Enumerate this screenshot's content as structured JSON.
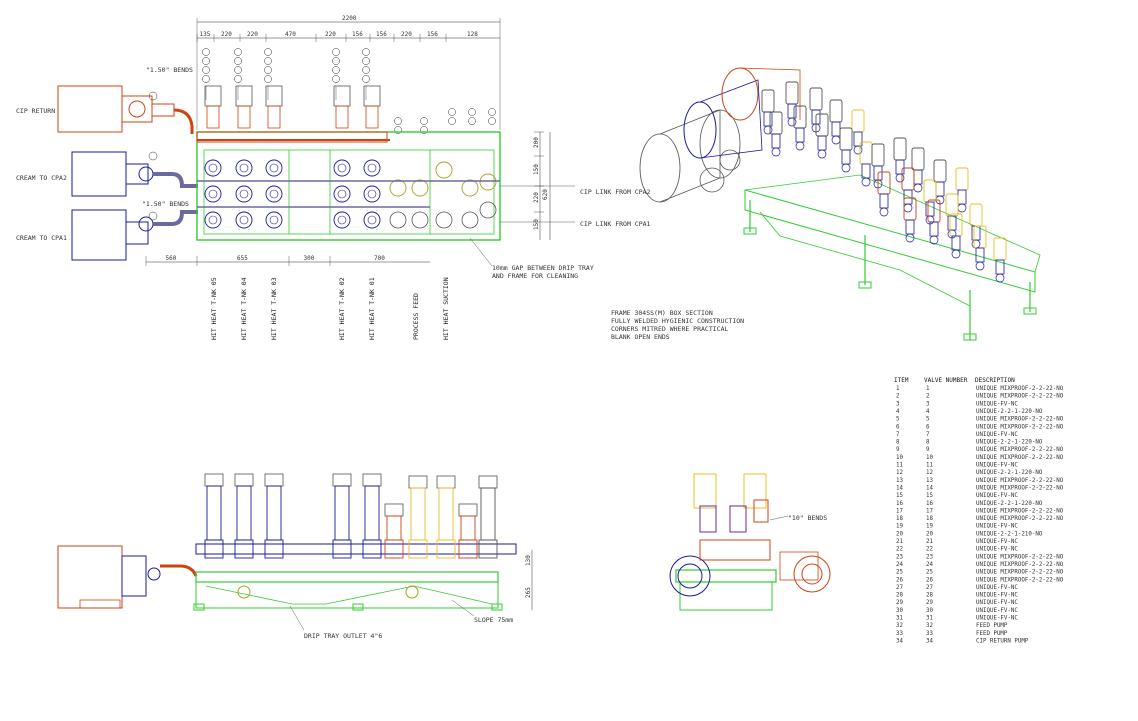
{
  "colors": {
    "green": "#33cc33",
    "orange": "#cc4411",
    "blue": "#1a1aa0",
    "purple": "#6a2a9a",
    "yellow": "#e8c020",
    "gray": "#555555"
  },
  "plan": {
    "overall_dim": "2200",
    "top_dims": [
      "135",
      "220",
      "220",
      "470",
      "220",
      "156",
      "156",
      "220",
      "156",
      "128"
    ],
    "right_dims": [
      "200",
      "150",
      "220",
      "150"
    ],
    "right_total": "620",
    "bottom_dims": [
      "560",
      "655",
      "300",
      "700"
    ],
    "labels": {
      "cip_return": "CIP RETURN",
      "cream_to_cpa2": "CREAM TO CPA2",
      "cream_to_cpa1": "CREAM TO CPA1",
      "bends_top": "\"1.50\" BENDS",
      "bends_bottom": "\"1.50\" BENDS",
      "cip_from_cpa2": "CIP LINK FROM CPA2",
      "cip_from_cpa1": "CIP LINK FROM CPA1",
      "gap_note_1": "10mm GAP BETWEEN DRIP TRAY",
      "gap_note_2": "AND FRAME FOR CLEANING"
    },
    "vertical_labels": [
      "HIT HEAT T-NK 05",
      "HIT HEAT T-NK 04",
      "HIT HEAT T-NK 03",
      "HIT HEAT T-NK 02",
      "HIT HEAT T-NK 01",
      "PROCESS FEED",
      "HIT HEAT SUCTION"
    ]
  },
  "frame_notes": [
    "FRAME 304SS(M) BOX SECTION",
    "FULLY WELDED HYGIENIC CONSTRUCTION",
    "CORNERS MITRED WHERE PRACTICAL",
    "BLANK OPEN ENDS"
  ],
  "side_view": {
    "dims": [
      "130",
      "265"
    ],
    "drip_tray": "DRIP TRAY OUTLET 4\"6",
    "slope": "SLOPE 75mm"
  },
  "end_view": {
    "bends": "\"10\" BENDS"
  },
  "item_table": {
    "headers": [
      "ITEM",
      "VALVE NUMBER",
      "DESCRIPTION"
    ],
    "rows": [
      [
        "1",
        "1",
        "UNIQUE MIXPROOF-2-2-22-NO"
      ],
      [
        "2",
        "2",
        "UNIQUE MIXPROOF-2-2-22-NO"
      ],
      [
        "3",
        "3",
        "UNIQUE-FV-NC"
      ],
      [
        "4",
        "4",
        "UNIQUE-2-2-1-220-NO"
      ],
      [
        "5",
        "5",
        "UNIQUE MIXPROOF-2-2-22-NO"
      ],
      [
        "6",
        "6",
        "UNIQUE MIXPROOF-2-2-22-NO"
      ],
      [
        "7",
        "7",
        "UNIQUE-FV-NC"
      ],
      [
        "8",
        "8",
        "UNIQUE-2-2-1-220-NO"
      ],
      [
        "9",
        "9",
        "UNIQUE MIXPROOF-2-2-22-NO"
      ],
      [
        "10",
        "10",
        "UNIQUE MIXPROOF-2-2-22-NO"
      ],
      [
        "11",
        "11",
        "UNIQUE-FV-NC"
      ],
      [
        "12",
        "12",
        "UNIQUE-2-2-1-220-NO"
      ],
      [
        "13",
        "13",
        "UNIQUE MIXPROOF-2-2-22-NO"
      ],
      [
        "14",
        "14",
        "UNIQUE MIXPROOF-2-2-22-NO"
      ],
      [
        "15",
        "15",
        "UNIQUE-FV-NC"
      ],
      [
        "16",
        "16",
        "UNIQUE-2-2-1-220-NO"
      ],
      [
        "17",
        "17",
        "UNIQUE MIXPROOF-2-2-22-NO"
      ],
      [
        "18",
        "18",
        "UNIQUE MIXPROOF-2-2-22-NO"
      ],
      [
        "19",
        "19",
        "UNIQUE-FV-NC"
      ],
      [
        "20",
        "20",
        "UNIQUE-2-2-1-210-NO"
      ],
      [
        "21",
        "21",
        "UNIQUE-FV-NC"
      ],
      [
        "22",
        "22",
        "UNIQUE-FV-NC"
      ],
      [
        "23",
        "23",
        "UNIQUE MIXPROOF-2-2-22-NO"
      ],
      [
        "24",
        "24",
        "UNIQUE MIXPROOF-2-2-22-NO"
      ],
      [
        "25",
        "25",
        "UNIQUE MIXPROOF-2-2-22-NO"
      ],
      [
        "26",
        "26",
        "UNIQUE MIXPROOF-2-2-22-NO"
      ],
      [
        "27",
        "27",
        "UNIQUE-FV-NC"
      ],
      [
        "28",
        "28",
        "UNIQUE-FV-NC"
      ],
      [
        "29",
        "29",
        "UNIQUE-FV-NC"
      ],
      [
        "30",
        "30",
        "UNIQUE-FV-NC"
      ],
      [
        "31",
        "31",
        "UNIQUE-FV-NC"
      ],
      [
        "32",
        "32",
        "FEED PUMP"
      ],
      [
        "33",
        "33",
        "FEED PUMP"
      ],
      [
        "34",
        "34",
        "CIP RETURN PUMP"
      ]
    ]
  }
}
